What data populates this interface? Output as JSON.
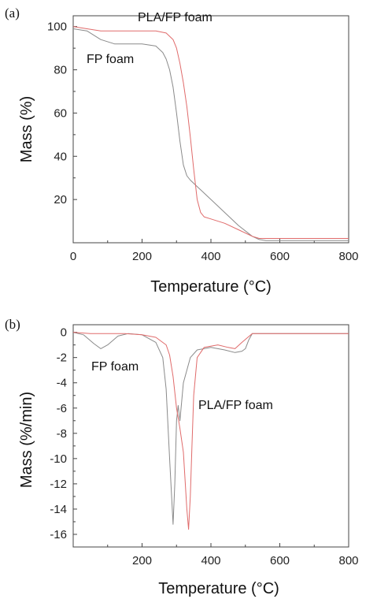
{
  "chart_data": [
    {
      "panel": "(a)",
      "type": "line",
      "title": "",
      "xlabel": "Temperature (°C)",
      "ylabel": "Mass (%)",
      "xlim": [
        0,
        800
      ],
      "ylim": [
        0,
        105
      ],
      "xticks": [
        0,
        200,
        400,
        600,
        800
      ],
      "yticks": [
        20,
        40,
        60,
        80,
        100
      ],
      "grid": false,
      "colors": {
        "FP foam": "#8a8a8a",
        "PLA/FP foam": "#e06b6b"
      },
      "series": [
        {
          "name": "FP foam",
          "x": [
            0,
            40,
            80,
            120,
            160,
            200,
            240,
            260,
            270,
            280,
            290,
            300,
            310,
            320,
            330,
            340,
            360,
            400,
            440,
            480,
            520,
            540,
            560,
            600,
            700,
            800
          ],
          "y": [
            99,
            98,
            94,
            92,
            92,
            92,
            91,
            88,
            85,
            80,
            72,
            60,
            47,
            36,
            31,
            29,
            26,
            20,
            14,
            8,
            3,
            1.5,
            1,
            1,
            1,
            1
          ]
        },
        {
          "name": "PLA/FP foam",
          "x": [
            0,
            40,
            80,
            120,
            160,
            200,
            240,
            270,
            290,
            300,
            310,
            320,
            330,
            340,
            350,
            360,
            370,
            380,
            400,
            440,
            480,
            520,
            540,
            600,
            700,
            800
          ],
          "y": [
            100,
            99,
            98,
            98,
            98,
            98,
            98,
            97,
            94,
            90,
            83,
            74,
            63,
            49,
            34,
            20,
            14,
            12,
            11,
            9,
            6,
            3,
            2,
            2,
            2,
            2
          ]
        }
      ],
      "annotations": [
        {
          "text": "PLA/FP foam",
          "series": "PLA/FP foam"
        },
        {
          "text": "FP foam",
          "series": "FP foam"
        }
      ]
    },
    {
      "panel": "(b)",
      "type": "line",
      "title": "",
      "xlabel": "Temperature (°C)",
      "ylabel": "Mass (%/min)",
      "xlim": [
        0,
        800
      ],
      "ylim": [
        -17,
        0.6
      ],
      "xticks": [
        200,
        400,
        600,
        800
      ],
      "xtick_labels": [
        "200",
        "400",
        "600",
        "800"
      ],
      "yticks": [
        0,
        -2,
        -4,
        -6,
        -8,
        -10,
        -12,
        -14,
        -16
      ],
      "grid": false,
      "colors": {
        "FP foam": "#8a8a8a",
        "PLA/FP foam": "#e06b6b"
      },
      "series": [
        {
          "name": "FP foam",
          "x": [
            0,
            30,
            60,
            80,
            100,
            130,
            160,
            200,
            240,
            260,
            270,
            280,
            290,
            295,
            300,
            305,
            310,
            320,
            340,
            360,
            400,
            440,
            470,
            490,
            500,
            510,
            520,
            560,
            800
          ],
          "y": [
            0,
            -0.2,
            -0.9,
            -1.3,
            -1.0,
            -0.3,
            -0.1,
            -0.2,
            -0.8,
            -2.0,
            -4.5,
            -10,
            -15.2,
            -12,
            -7,
            -5.8,
            -7,
            -4,
            -2,
            -1.4,
            -1.2,
            -1.4,
            -1.6,
            -1.5,
            -1.3,
            -0.6,
            -0.1,
            -0.1,
            -0.1
          ]
        },
        {
          "name": "PLA/FP foam",
          "x": [
            0,
            50,
            100,
            150,
            200,
            240,
            270,
            280,
            290,
            300,
            310,
            320,
            330,
            335,
            340,
            345,
            350,
            360,
            380,
            420,
            450,
            470,
            490,
            520,
            600,
            800
          ],
          "y": [
            0,
            -0.1,
            -0.1,
            -0.1,
            -0.2,
            -0.4,
            -1.0,
            -1.8,
            -3.5,
            -6.0,
            -7.6,
            -9.5,
            -14,
            -15.6,
            -13,
            -9,
            -5,
            -2.0,
            -1.2,
            -1.0,
            -1.2,
            -1.3,
            -0.8,
            -0.1,
            -0.1,
            -0.1
          ]
        }
      ],
      "annotations": [
        {
          "text": "FP foam",
          "series": "FP foam"
        },
        {
          "text": "PLA/FP foam",
          "series": "PLA/FP foam"
        }
      ]
    }
  ]
}
